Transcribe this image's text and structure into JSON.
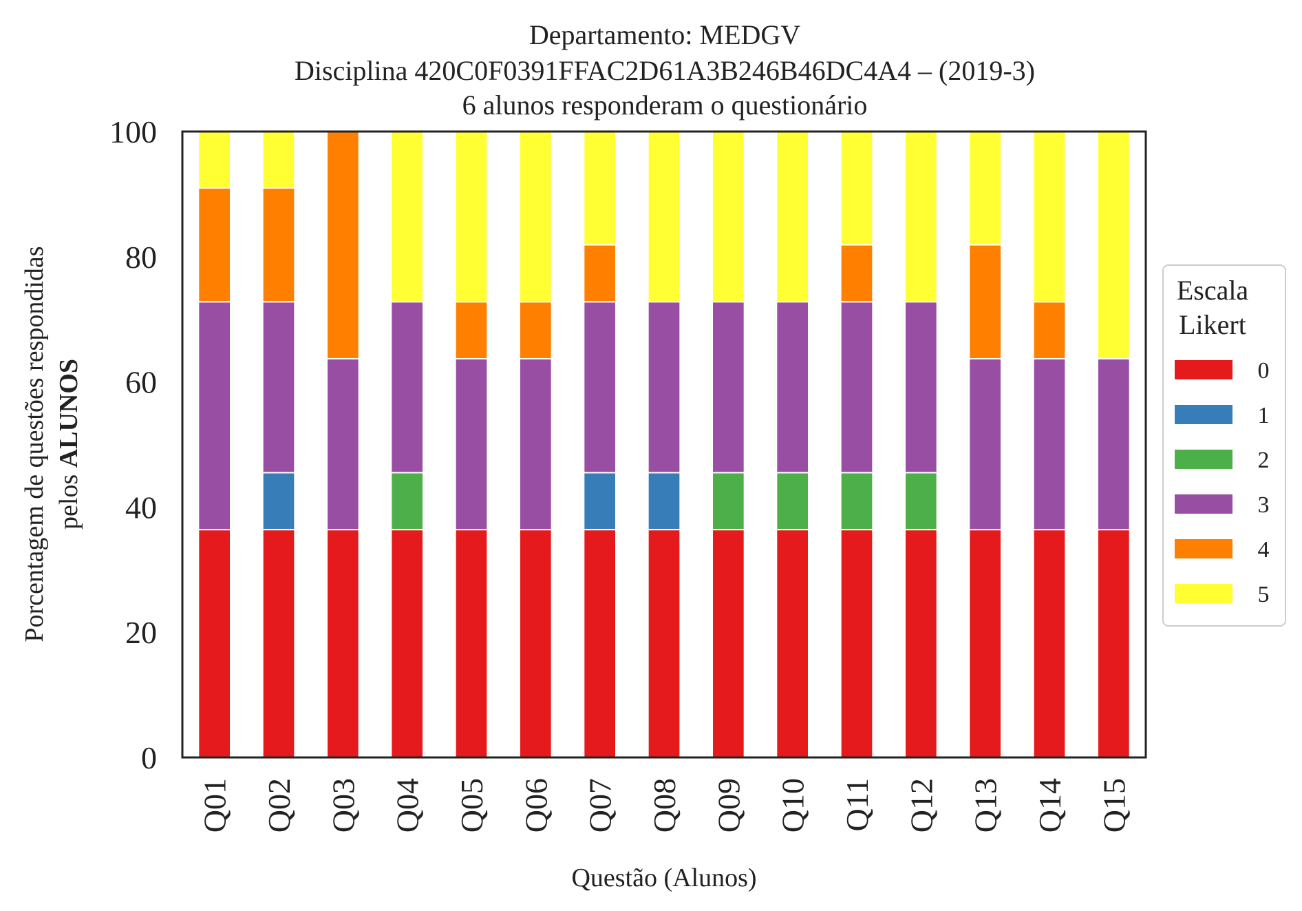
{
  "chart_data": {
    "type": "bar",
    "stacked": true,
    "title_lines": [
      "Departamento: MEDGV",
      "Disciplina 420C0F0391FFAC2D61A3B246B46DC4A4 – (2019-3)",
      "6 alunos responderam o questionário"
    ],
    "ylabel_line1": "Porcentagem de questões respondidas",
    "ylabel_line2_prefix": "pelos ",
    "ylabel_line2_bold": "ALUNOS",
    "xlabel": "Questão (Alunos)",
    "ylim": [
      0,
      100
    ],
    "yticks": [
      "0",
      "20",
      "40",
      "60",
      "80",
      "100"
    ],
    "categories": [
      "Q01",
      "Q02",
      "Q03",
      "Q04",
      "Q05",
      "Q06",
      "Q07",
      "Q08",
      "Q09",
      "Q10",
      "Q11",
      "Q12",
      "Q13",
      "Q14",
      "Q15"
    ],
    "legend": {
      "title_line1": "Escala",
      "title_line2": "Likert",
      "placement": "center-right outside"
    },
    "series": [
      {
        "name": "0",
        "color": "#e41a1c",
        "values": [
          36.4,
          36.4,
          36.4,
          36.4,
          36.4,
          36.4,
          36.4,
          36.4,
          36.4,
          36.4,
          36.4,
          36.4,
          36.4,
          36.4,
          36.4
        ]
      },
      {
        "name": "1",
        "color": "#377eb8",
        "values": [
          0,
          9.1,
          0,
          0,
          0,
          0,
          9.1,
          9.1,
          0,
          0,
          0,
          0,
          0,
          0,
          0
        ]
      },
      {
        "name": "2",
        "color": "#4daf4a",
        "values": [
          0,
          0,
          0,
          9.1,
          0,
          0,
          0,
          0,
          9.1,
          9.1,
          9.1,
          9.1,
          0,
          0,
          0
        ]
      },
      {
        "name": "3",
        "color": "#984ea3",
        "values": [
          36.4,
          27.3,
          27.3,
          27.3,
          27.3,
          27.3,
          27.3,
          27.3,
          27.3,
          27.3,
          27.3,
          27.3,
          27.3,
          27.3,
          27.3
        ]
      },
      {
        "name": "4",
        "color": "#ff7f00",
        "values": [
          18.2,
          18.2,
          36.4,
          0,
          9.1,
          9.1,
          9.1,
          0,
          0,
          0,
          9.1,
          0,
          18.2,
          9.1,
          0
        ]
      },
      {
        "name": "5",
        "color": "#ffff33",
        "values": [
          9.1,
          9.1,
          0,
          27.3,
          27.3,
          27.3,
          18.2,
          27.3,
          27.3,
          27.3,
          18.2,
          27.3,
          18.2,
          27.3,
          36.4
        ]
      }
    ],
    "grid": false
  }
}
